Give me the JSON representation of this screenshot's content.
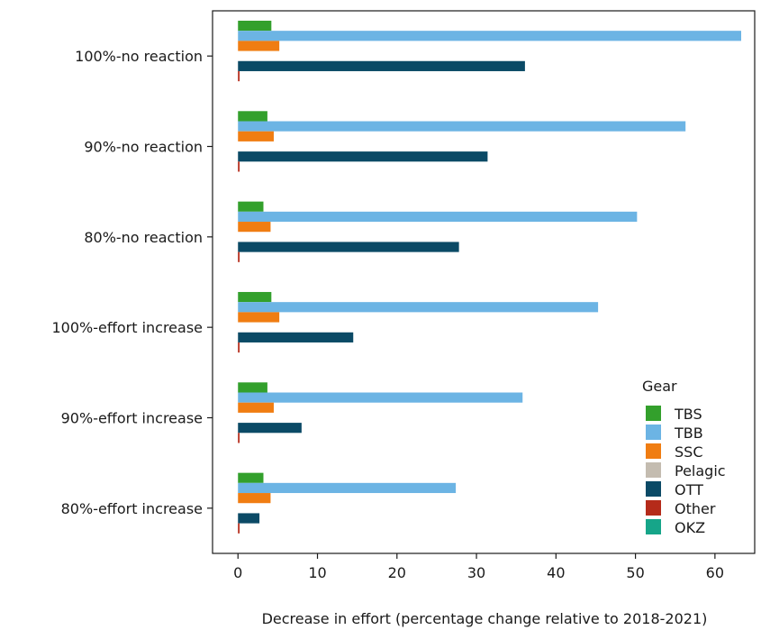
{
  "chart_data": {
    "type": "bar",
    "orientation": "horizontal",
    "xlabel": "Decrease in effort (percentage change relative to 2018-2021)",
    "xlim": [
      -3.2,
      65
    ],
    "xticks": [
      0,
      10,
      20,
      30,
      40,
      50,
      60
    ],
    "categories": [
      "100%-no reaction",
      "90%-no reaction",
      "80%-no reaction",
      "100%-effort increase",
      "90%-effort increase",
      "80%-effort increase"
    ],
    "legend_title": "Gear",
    "legend_position": "bottom-right",
    "grid": false,
    "series": [
      {
        "name": "TBS",
        "color": "#33a02c",
        "values": [
          4.2,
          3.7,
          3.2,
          4.2,
          3.7,
          3.2
        ]
      },
      {
        "name": "TBB",
        "color": "#6cb4e4",
        "values": [
          63.3,
          56.3,
          50.2,
          45.3,
          35.8,
          27.4
        ]
      },
      {
        "name": "SSC",
        "color": "#f07d12",
        "values": [
          5.2,
          4.5,
          4.1,
          5.2,
          4.5,
          4.1
        ]
      },
      {
        "name": "Pelagic",
        "color": "#c4bcb0",
        "values": [
          0,
          0,
          0,
          0,
          0,
          0
        ]
      },
      {
        "name": "OTT",
        "color": "#0b4a66",
        "values": [
          36.1,
          31.4,
          27.8,
          14.5,
          8.0,
          2.7
        ]
      },
      {
        "name": "Other",
        "color": "#b52b1a",
        "values": [
          0.2,
          0.2,
          0.2,
          0.2,
          0.2,
          0.2
        ]
      },
      {
        "name": "OKZ",
        "color": "#16a589",
        "values": [
          0,
          0,
          0,
          0,
          0,
          0
        ]
      }
    ]
  }
}
